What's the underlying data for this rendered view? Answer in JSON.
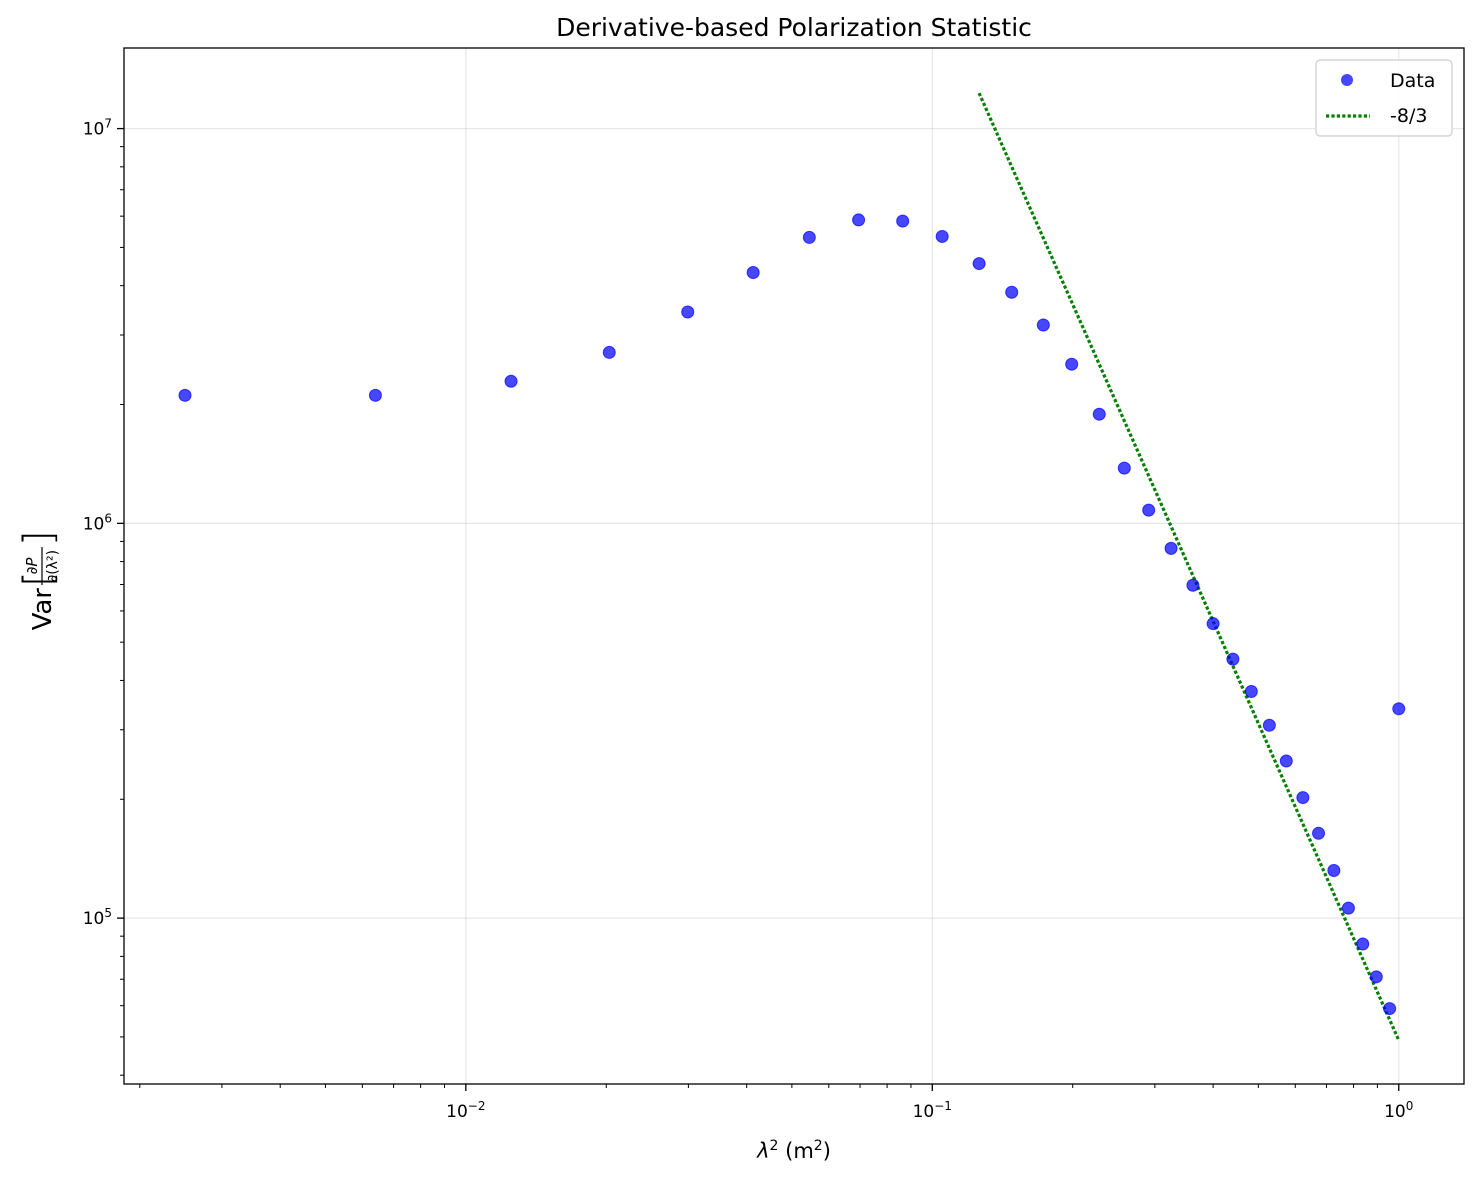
{
  "chart_data": {
    "type": "scatter",
    "title": "Derivative-based Polarization Statistic",
    "xlabel": {
      "base": "λ",
      "sup": "2",
      "unit_open": " (m",
      "unit_sup": "2",
      "unit_close": ")"
    },
    "ylabel": {
      "prefix": "Var",
      "numerator": "∂P",
      "denominator": "∂(λ²)"
    },
    "xscale": "log",
    "yscale": "log",
    "xlim": [
      0.00185,
      1.38
    ],
    "ylim": [
      38000,
      16000000
    ],
    "grid": true,
    "legend_position": "top-right",
    "x_major_ticks": [
      {
        "value": 0.01,
        "base": "10",
        "exp": "−2"
      },
      {
        "value": 0.1,
        "base": "10",
        "exp": "−1"
      },
      {
        "value": 1,
        "base": "10",
        "exp": "0"
      }
    ],
    "y_major_ticks": [
      {
        "value": 100000,
        "base": "10",
        "exp": "5"
      },
      {
        "value": 1000000,
        "base": "10",
        "exp": "6"
      },
      {
        "value": 10000000,
        "base": "10",
        "exp": "7"
      }
    ],
    "series": [
      {
        "name": "Data",
        "kind": "markers",
        "color": "#0000ff",
        "alpha": 0.72,
        "points": [
          [
            0.0025,
            2110000
          ],
          [
            0.0064,
            2110000
          ],
          [
            0.0125,
            2290000
          ],
          [
            0.0203,
            2710000
          ],
          [
            0.0299,
            3430000
          ],
          [
            0.0413,
            4320000
          ],
          [
            0.0545,
            5300000
          ],
          [
            0.0695,
            5870000
          ],
          [
            0.0864,
            5830000
          ],
          [
            0.105,
            5330000
          ],
          [
            0.126,
            4550000
          ],
          [
            0.148,
            3850000
          ],
          [
            0.173,
            3180000
          ],
          [
            0.199,
            2530000
          ],
          [
            0.228,
            1890000
          ],
          [
            0.258,
            1380000
          ],
          [
            0.291,
            1080000
          ],
          [
            0.325,
            864000
          ],
          [
            0.362,
            697000
          ],
          [
            0.4,
            557000
          ],
          [
            0.441,
            453000
          ],
          [
            0.483,
            375000
          ],
          [
            0.528,
            308000
          ],
          [
            0.574,
            250000
          ],
          [
            0.623,
            202000
          ],
          [
            0.673,
            164000
          ],
          [
            0.726,
            132000
          ],
          [
            0.78,
            106000
          ],
          [
            0.837,
            86000
          ],
          [
            0.895,
            71000
          ],
          [
            0.956,
            59000
          ],
          [
            1.0,
            339000
          ]
        ]
      },
      {
        "name": "-8/3",
        "kind": "line",
        "style": "dotted",
        "color": "#007f00",
        "points": [
          [
            0.126,
            12300000
          ],
          [
            1.0,
            49000
          ]
        ]
      }
    ]
  }
}
